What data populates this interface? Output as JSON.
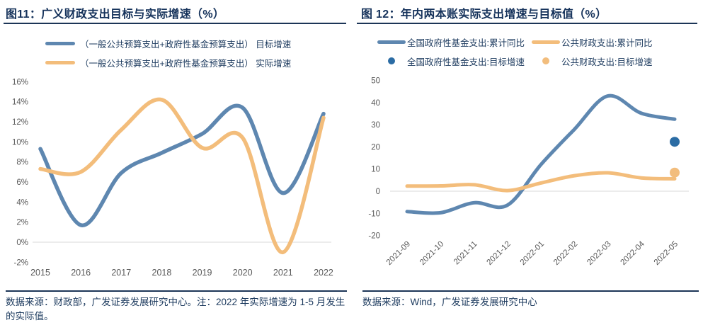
{
  "page": {
    "background": "#ffffff"
  },
  "colors": {
    "navy_text": "#1C3A5E",
    "title_navy": "#15325B",
    "rule_navy": "#1C3557",
    "axis_label_gray": "#595959",
    "gridline_gray": "#D9D9D9",
    "blue_line": "#5E87B0",
    "orange_line": "#F3BD7B",
    "blue_dot": "#2B6CA4",
    "orange_dot": "#F2BD7D"
  },
  "figure11": {
    "title": "图11：广义财政支出目标与实际增速（%）",
    "legend": [
      {
        "label": "（一般公共预算支出+政府性基金预算支出） 目标增速"
      },
      {
        "label": "（一般公共预算支出+政府性基金预算支出） 实际增速"
      }
    ],
    "source_note": "数据来源：财政部，广发证券发展研究中心。注：2022 年实际增速为 1-5 月发生的实际值。"
  },
  "figure12": {
    "title": "图 12：年内两本账实际支出增速与目标值（%）",
    "legend": [
      {
        "label": "全国政府性基金支出:累计同比"
      },
      {
        "label": "公共财政支出:累计同比"
      },
      {
        "label": "全国政府性基金支出:目标增速"
      },
      {
        "label": "公共财政支出:目标增速"
      }
    ],
    "source_note": "数据来源：Wind，广发证券发展研究中心"
  },
  "chart_data": [
    {
      "type": "line",
      "title": "广义财政支出目标与实际增速（%）",
      "categories": [
        "2015",
        "2016",
        "2017",
        "2018",
        "2019",
        "2020",
        "2021",
        "2022"
      ],
      "series": [
        {
          "name": "（一般公共预算支出+政府性基金预算支出）目标增速",
          "color": "#5E87B0",
          "values": [
            9.3,
            1.7,
            6.9,
            8.9,
            10.8,
            13.4,
            4.9,
            12.8
          ]
        },
        {
          "name": "（一般公共预算支出+政府性基金预算支出）实际增速",
          "color": "#F3BD7B",
          "values": [
            7.3,
            7.0,
            11.2,
            14.2,
            9.4,
            10.4,
            -1.0,
            12.4
          ]
        }
      ],
      "ylim": [
        -2,
        16
      ],
      "yticks": [
        16,
        14,
        12,
        10,
        8,
        6,
        4,
        2,
        0,
        -2
      ],
      "ytick_labels": [
        "16%",
        "14%",
        "12%",
        "10%",
        "8%",
        "6%",
        "4%",
        "2%",
        "0%",
        "-2%"
      ],
      "grid_at": 0,
      "legend_position": "top",
      "xlabel": "",
      "ylabel": ""
    },
    {
      "type": "line",
      "title": "年内两本账实际支出增速与目标值（%）",
      "categories": [
        "2021-09",
        "2021-10",
        "2021-11",
        "2021-12",
        "2022-01",
        "2022-02",
        "2022-03",
        "2022-04",
        "2022-05"
      ],
      "series": [
        {
          "name": "全国政府性基金支出:累计同比",
          "color": "#5E87B0",
          "values": [
            -9.2,
            -9.7,
            -5.2,
            -6.3,
            12.0,
            27.9,
            43.0,
            35.2,
            32.5
          ]
        },
        {
          "name": "公共财政支出:累计同比",
          "color": "#F3BD7B",
          "values": [
            2.3,
            2.4,
            2.9,
            0.3,
            3.7,
            7.0,
            8.3,
            6.0,
            5.6
          ]
        }
      ],
      "points": [
        {
          "name": "全国政府性基金支出:目标增速",
          "color": "#2B6CA4",
          "category": "2022-05",
          "value": 22.3
        },
        {
          "name": "公共财政支出:目标增速",
          "color": "#F2BD7D",
          "category": "2022-05",
          "value": 8.4
        }
      ],
      "ylim": [
        -20,
        50
      ],
      "yticks": [
        50,
        40,
        30,
        20,
        10,
        0,
        -10,
        -20
      ],
      "ytick_labels": [
        "50",
        "40",
        "30",
        "20",
        "10",
        "0",
        "-10",
        "-20"
      ],
      "grid_at": 0,
      "xtick_rotation": -45,
      "legend_position": "top",
      "xlabel": "",
      "ylabel": ""
    }
  ]
}
